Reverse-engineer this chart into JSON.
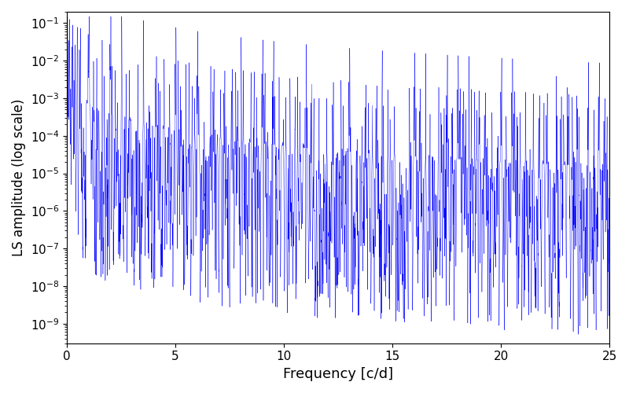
{
  "xlabel": "Frequency [c/d]",
  "ylabel": "LS amplitude (log scale)",
  "xlim": [
    0,
    25
  ],
  "ylim": [
    3e-10,
    0.2
  ],
  "line_color": "#0000ff",
  "background_color": "#ffffff",
  "xlabel_fontsize": 13,
  "ylabel_fontsize": 12,
  "tick_fontsize": 11,
  "freq_max": 25.0,
  "n_points": 50000,
  "random_seed": 12345
}
